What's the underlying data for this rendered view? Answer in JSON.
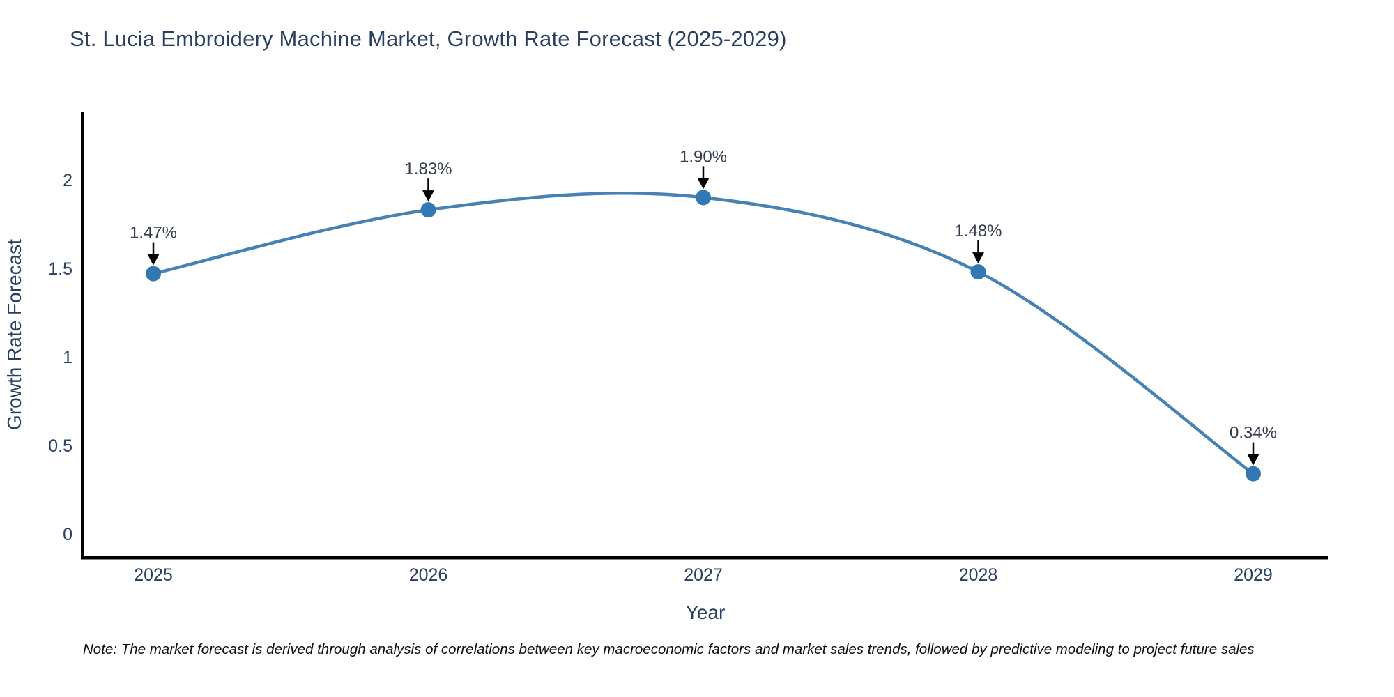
{
  "chart_data": {
    "type": "line",
    "line_shape": "spline",
    "title": "St. Lucia Embroidery Machine Market, Growth Rate Forecast (2025-2029)",
    "xlabel": "Year",
    "ylabel": "Growth Rate Forecast",
    "categories": [
      "2025",
      "2026",
      "2027",
      "2028",
      "2029"
    ],
    "values": [
      1.47,
      1.83,
      1.9,
      1.48,
      0.34
    ],
    "point_labels": [
      "1.47%",
      "1.83%",
      "1.90%",
      "1.48%",
      "0.34%"
    ],
    "y_ticks": [
      "0",
      "0.5",
      "1",
      "1.5",
      "2"
    ],
    "ylim": [
      0,
      2.39
    ],
    "grid": false,
    "legend": "none",
    "annotations": "black down-arrows from each percentage label to its data point",
    "colors": {
      "line": "#4682b4",
      "marker": "#3178b5",
      "axis": "#000000",
      "tick_text": "#2a3f5f",
      "title_text": "#2a3f5f",
      "annotation_text": "#333d4d",
      "arrow": "#000000",
      "background": "#ffffff"
    },
    "note": "Note: The market forecast is derived through analysis of correlations between key macroeconomic factors and market sales trends, followed by predictive modeling to project future sales"
  }
}
